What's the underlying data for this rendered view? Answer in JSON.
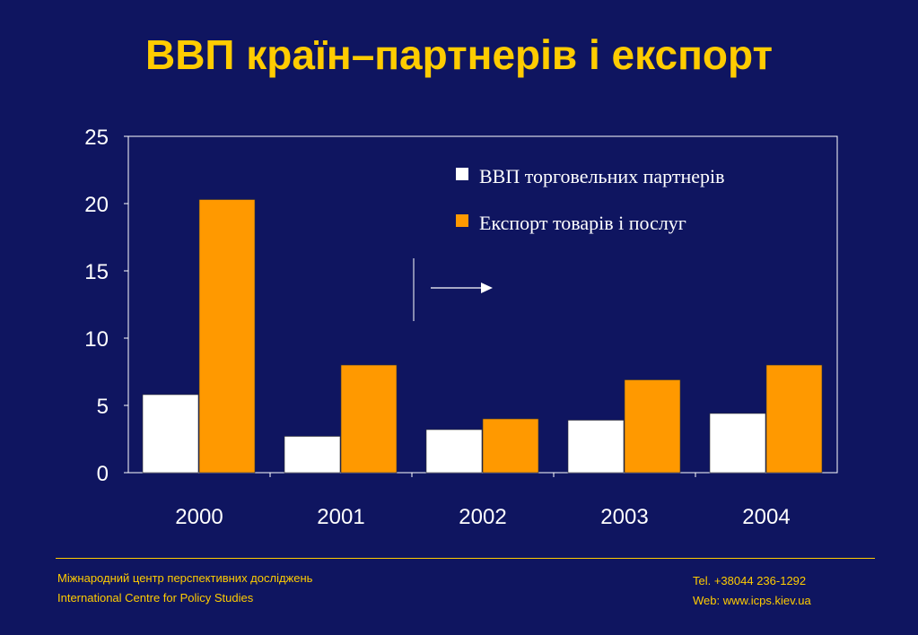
{
  "title": "ВВП країн–партнерів і експорт",
  "colors": {
    "background": "#0f1560",
    "accent": "#ffcc00",
    "series1": "#ffffff",
    "series2": "#ff9900"
  },
  "chart_data": {
    "type": "bar",
    "categories": [
      "2000",
      "2001",
      "2002",
      "2003",
      "2004"
    ],
    "series": [
      {
        "name": "ВВП торговельних партнерів",
        "values": [
          5.8,
          2.7,
          3.2,
          3.9,
          4.4
        ],
        "color": "#ffffff"
      },
      {
        "name": "Експорт товарів і послуг",
        "values": [
          20.3,
          8.0,
          4.0,
          6.9,
          8.0
        ],
        "color": "#ff9900"
      }
    ],
    "yticks": [
      "0",
      "5",
      "10",
      "15",
      "20",
      "25"
    ],
    "ylim": [
      0,
      25
    ],
    "xlabel": "",
    "ylabel": "",
    "legend": "top-right",
    "grid": false
  },
  "footer": {
    "org_uk": "Міжнародний центр перспективних досліджень",
    "org_en": "International Centre for Policy Studies",
    "tel": "Tel. +38044 236-1292",
    "web": "Web: www.icps.kiev.ua"
  }
}
